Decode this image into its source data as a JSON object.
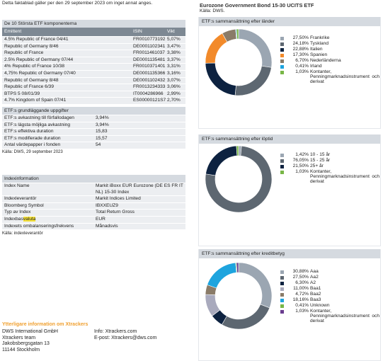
{
  "header": {
    "note": "Detta faktablad gäller per den 29 september 2023 om inget annat anges.",
    "title": "Eurozone Government Bond 15-30 UCITS ETF",
    "source": "Källa: DWS."
  },
  "components": {
    "title": "De 10 Största ETF komponenterna",
    "columns": [
      "Emittent",
      "ISIN",
      "Vikt"
    ],
    "rows": [
      [
        "4.5% Republic of France 04/41",
        "FR0010773192",
        "5,07%"
      ],
      [
        "Republic of Germany 8/46",
        "DE0001102341",
        "3,47%"
      ],
      [
        "Republic of France",
        "FR0011461037",
        "3,38%"
      ],
      [
        "2.5% Republic of Germany 07/44",
        "DE0001135481",
        "3,37%"
      ],
      [
        "4% Republic of France 10/38",
        "FR0010371401",
        "3,31%"
      ],
      [
        "4,75% Republic of Germany  07/40",
        "DE0001135366",
        "3,16%"
      ],
      [
        "Republic of Germany 8/48",
        "DE0001102432",
        "3,07%"
      ],
      [
        "Republic of France 6/39",
        "FR0013234333",
        "3,06%"
      ],
      [
        "BTPS 5 08/01/39",
        "IT0004286966",
        "2,99%"
      ],
      [
        "4.7% Kingdom of Spain 07/41",
        "ES00000121S7",
        "2,70%"
      ]
    ]
  },
  "basics": {
    "title": "ETF:s grundläggande uppgifter",
    "rows": [
      [
        "ETF:s avkastning till förfallodagen",
        "3,94%"
      ],
      [
        "ETF:s lägsta möjliga avkastning",
        "3,94%"
      ],
      [
        "ETF:s effektiva duration",
        "15,83"
      ],
      [
        "ETF:s modifierade duration",
        "15,57"
      ],
      [
        "Antal värdepapper i fonden",
        "54"
      ]
    ],
    "source": "Källa: DWS, 29 september 2023"
  },
  "index": {
    "title": "Indexinformation",
    "rows": [
      [
        "Index Name",
        "Markit iBoxx EUR Eurozone (DE ES FR IT NL) 15-30 Index"
      ],
      [
        "Indexleverantör",
        "Markit Indices Limited"
      ],
      [
        "Bloomberg Symbol",
        "IBXXEUZ9"
      ],
      [
        "Typ av Index",
        "Total Return Gross"
      ],
      [
        {
          "text": "Indexbas",
          "highlight": "valuta"
        },
        "EUR"
      ],
      [
        "Indexets ombalanseringsfrekvens",
        "Månadsvis"
      ]
    ],
    "source": "Källa: indexleverantör"
  },
  "donuts": [
    {
      "title": "ETF:s  sammansättning efter länder",
      "items": [
        {
          "value": 27.5,
          "label": "27,50%",
          "name": "Frankrike",
          "color": "#9ba6b2"
        },
        {
          "value": 24.18,
          "label": "24,18%",
          "name": "Tyskland",
          "color": "#5d6771"
        },
        {
          "value": 22.88,
          "label": "22,88%",
          "name": "Italien",
          "color": "#0d2240"
        },
        {
          "value": 17.3,
          "label": "17,30%",
          "name": "Spanien",
          "color": "#f28a2a"
        },
        {
          "value": 6.7,
          "label": "6,70%",
          "name": "Nederländerna",
          "color": "#8a7b68"
        },
        {
          "value": 0.41,
          "label": "0,41%",
          "name": "Irland",
          "color": "#1ea4de"
        },
        {
          "value": 1.03,
          "label": "1,03%",
          "name": "Kontanter, Penningmarknadsinstrument och derivat",
          "color": "#78b646"
        }
      ]
    },
    {
      "title": "ETF:s  sammansättning efter löptid",
      "items": [
        {
          "value": 1.42,
          "label": "1,42%",
          "name": "10 - 15 år",
          "color": "#9ba6b2"
        },
        {
          "value": 76.05,
          "label": "76,05%",
          "name": "15 - 25 år",
          "color": "#5d6771"
        },
        {
          "value": 21.5,
          "label": "21,50%",
          "name": "25+ år",
          "color": "#0d2240"
        },
        {
          "value": 1.03,
          "label": "1,03%",
          "name": "Kontanter, Penningmarknadsinstrument och derivat",
          "color": "#78b646"
        }
      ]
    },
    {
      "title": "ETF:s  sammansättning efter kreditbetyg",
      "items": [
        {
          "value": 30.88,
          "label": "30,88%",
          "name": "Aaa",
          "color": "#9ba6b2"
        },
        {
          "value": 27.5,
          "label": "27,50%",
          "name": "Aa2",
          "color": "#5d6771"
        },
        {
          "value": 6.3,
          "label": "6,30%",
          "name": "A2",
          "color": "#0d2240"
        },
        {
          "value": 11.0,
          "label": "11,00%",
          "name": "Baa1",
          "color": "#a9aabd"
        },
        {
          "value": 4.72,
          "label": "4,72%",
          "name": "Baa2",
          "color": "#8a7b68"
        },
        {
          "value": 18.16,
          "label": "18,16%",
          "name": "Baa3",
          "color": "#1ea4de"
        },
        {
          "value": 0.41,
          "label": "0,41%",
          "name": "Unknown",
          "color": "#78b646"
        },
        {
          "value": 1.03,
          "label": "1,03%",
          "name": "Kontanter, Penningmarknadsinstrument och derivat",
          "color": "#6a3d8f"
        }
      ]
    }
  ],
  "contact": {
    "title": "Ytterligare information om Xtrackers",
    "address": [
      "DWS International GmbH",
      "Xtrackers team",
      "Jakobsbergsgatan 13",
      "11144  Stockholm"
    ],
    "online": [
      "Info: Xtrackers.com",
      "E-post: Xtrackers@dws.com"
    ]
  }
}
